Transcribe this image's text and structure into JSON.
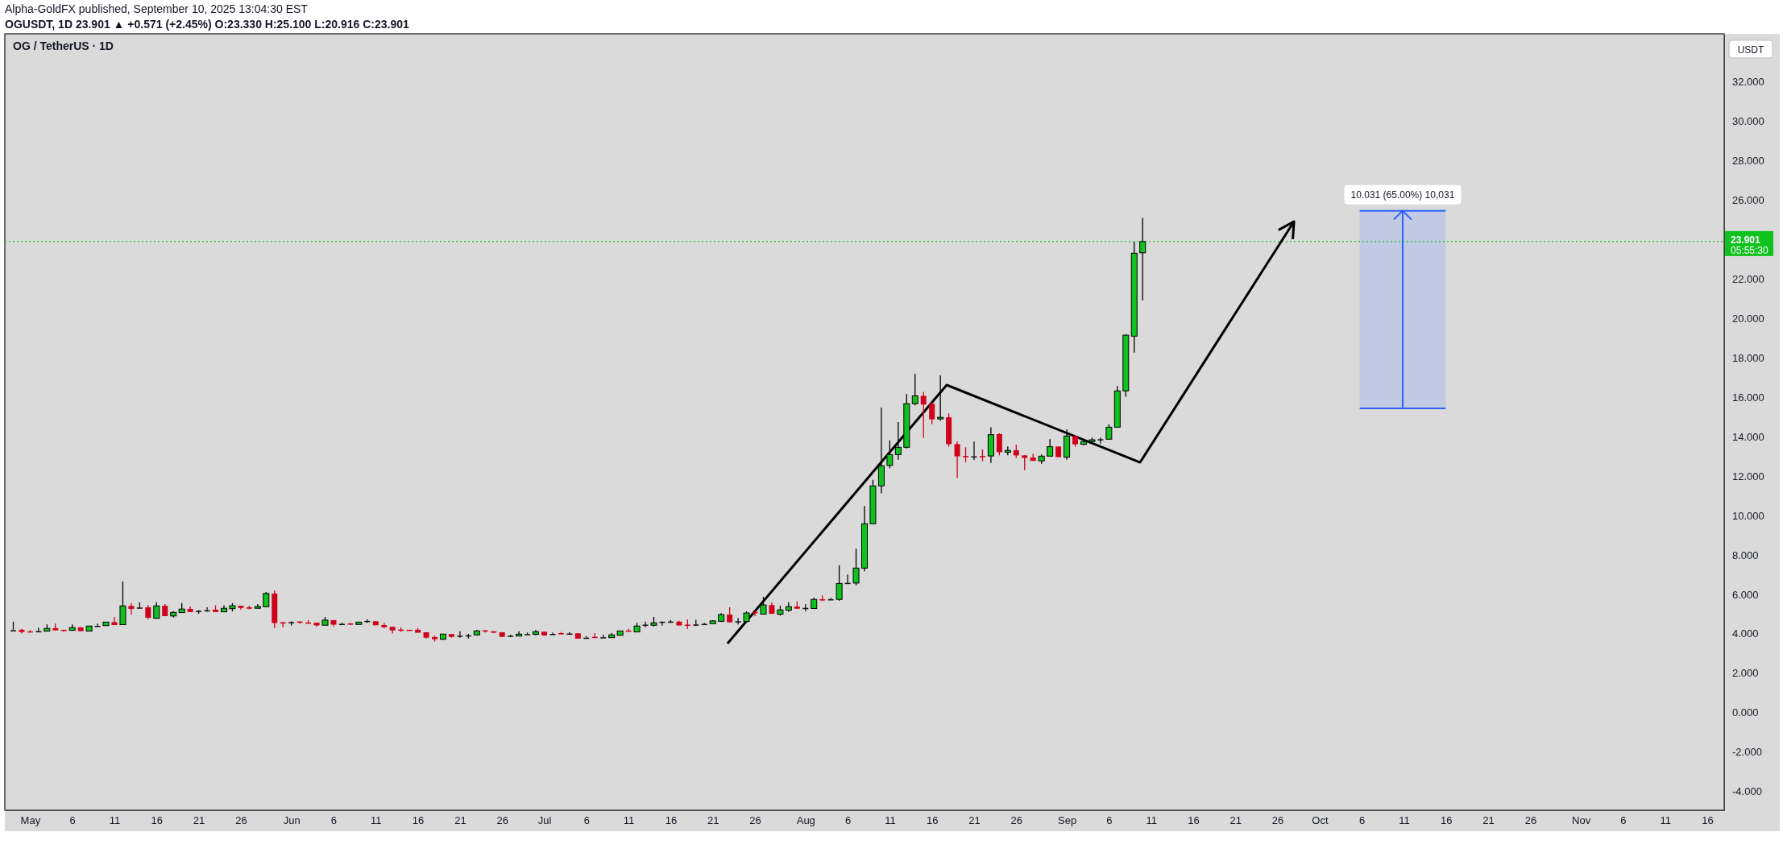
{
  "chart_data": {
    "type": "candlestick",
    "title": "OG / TetherUS · 1D",
    "annotations": [
      "Alpha-GoldFX published, September 10, 2025 13:04:30 EST",
      "OGUSDT, 1D 23.901 ▲ +0.571 (+2.45%) O:23.330 H:25.100 L:20.916 C:23.901",
      "USDT",
      "05:55:30"
    ],
    "x": [
      "2025-04-29",
      "2025-04-30",
      "2025-05-01",
      "2025-05-02",
      "2025-05-03",
      "2025-05-04",
      "2025-05-05",
      "2025-05-06",
      "2025-05-07",
      "2025-05-08",
      "2025-05-09",
      "2025-05-10",
      "2025-05-11",
      "2025-05-12",
      "2025-05-13",
      "2025-05-14",
      "2025-05-15",
      "2025-05-16",
      "2025-05-17",
      "2025-05-18",
      "2025-05-19",
      "2025-05-20",
      "2025-05-21",
      "2025-05-22",
      "2025-05-23",
      "2025-05-24",
      "2025-05-25",
      "2025-05-26",
      "2025-05-27",
      "2025-05-28",
      "2025-05-29",
      "2025-05-30",
      "2025-05-31",
      "2025-06-01",
      "2025-06-02",
      "2025-06-03",
      "2025-06-04",
      "2025-06-05",
      "2025-06-06",
      "2025-06-07",
      "2025-06-08",
      "2025-06-09",
      "2025-06-10",
      "2025-06-11",
      "2025-06-12",
      "2025-06-13",
      "2025-06-14",
      "2025-06-15",
      "2025-06-16",
      "2025-06-17",
      "2025-06-18",
      "2025-06-19",
      "2025-06-20",
      "2025-06-21",
      "2025-06-22",
      "2025-06-23",
      "2025-06-24",
      "2025-06-25",
      "2025-06-26",
      "2025-06-27",
      "2025-06-28",
      "2025-06-29",
      "2025-06-30",
      "2025-07-01",
      "2025-07-02",
      "2025-07-03",
      "2025-07-04",
      "2025-07-05",
      "2025-07-06",
      "2025-07-07",
      "2025-07-08",
      "2025-07-09",
      "2025-07-10",
      "2025-07-11",
      "2025-07-12",
      "2025-07-13",
      "2025-07-14",
      "2025-07-15",
      "2025-07-16",
      "2025-07-17",
      "2025-07-18",
      "2025-07-19",
      "2025-07-20",
      "2025-07-21",
      "2025-07-22",
      "2025-07-23",
      "2025-07-24",
      "2025-07-25",
      "2025-07-26",
      "2025-07-27",
      "2025-07-28",
      "2025-07-29",
      "2025-07-30",
      "2025-07-31",
      "2025-08-01",
      "2025-08-02",
      "2025-08-03",
      "2025-08-04",
      "2025-08-05",
      "2025-08-06",
      "2025-08-07",
      "2025-08-08",
      "2025-08-09",
      "2025-08-10",
      "2025-08-11",
      "2025-08-12",
      "2025-08-13",
      "2025-08-14",
      "2025-08-15",
      "2025-08-16",
      "2025-08-17",
      "2025-08-18",
      "2025-08-19",
      "2025-08-20",
      "2025-08-21",
      "2025-08-22",
      "2025-08-23",
      "2025-08-24",
      "2025-08-25",
      "2025-08-26",
      "2025-08-27",
      "2025-08-28",
      "2025-08-29",
      "2025-08-30",
      "2025-08-31",
      "2025-09-01",
      "2025-09-02",
      "2025-09-03",
      "2025-09-04",
      "2025-09-05",
      "2025-09-06",
      "2025-09-07",
      "2025-09-08",
      "2025-09-09",
      "2025-09-10"
    ],
    "ohlc": [
      [
        4.18,
        4.61,
        4.18,
        4.18
      ],
      [
        4.2,
        4.25,
        4.01,
        4.09
      ],
      [
        4.12,
        4.18,
        4.09,
        4.09
      ],
      [
        4.13,
        4.31,
        4.09,
        4.13
      ],
      [
        4.13,
        4.47,
        4.13,
        4.27
      ],
      [
        4.28,
        4.52,
        4.17,
        4.17
      ],
      [
        4.2,
        4.2,
        4.09,
        4.17
      ],
      [
        4.17,
        4.47,
        4.17,
        4.31
      ],
      [
        4.32,
        4.35,
        4.13,
        4.13
      ],
      [
        4.13,
        4.39,
        4.13,
        4.39
      ],
      [
        4.4,
        4.51,
        4.37,
        4.4
      ],
      [
        4.41,
        4.59,
        4.41,
        4.59
      ],
      [
        4.59,
        4.85,
        4.44,
        4.44
      ],
      [
        4.46,
        6.65,
        4.46,
        5.41
      ],
      [
        5.41,
        5.55,
        4.97,
        5.26
      ],
      [
        5.33,
        5.59,
        5.29,
        5.33
      ],
      [
        5.34,
        5.46,
        4.73,
        4.81
      ],
      [
        4.78,
        5.59,
        4.78,
        5.41
      ],
      [
        5.42,
        5.5,
        4.89,
        4.89
      ],
      [
        4.9,
        5.15,
        4.82,
        5.08
      ],
      [
        5.07,
        5.55,
        5.07,
        5.25
      ],
      [
        5.26,
        5.38,
        5.1,
        5.1
      ],
      [
        5.16,
        5.2,
        5.01,
        5.16
      ],
      [
        5.19,
        5.34,
        5.12,
        5.19
      ],
      [
        5.22,
        5.44,
        5.1,
        5.1
      ],
      [
        5.11,
        5.44,
        5.11,
        5.29
      ],
      [
        5.27,
        5.55,
        5.14,
        5.42
      ],
      [
        5.42,
        5.42,
        5.23,
        5.31
      ],
      [
        5.34,
        5.42,
        5.23,
        5.27
      ],
      [
        5.29,
        5.5,
        5.29,
        5.38
      ],
      [
        5.37,
        6.12,
        5.37,
        6.04
      ],
      [
        6.04,
        6.2,
        4.29,
        4.54
      ],
      [
        4.58,
        4.58,
        4.33,
        4.55
      ],
      [
        4.59,
        4.63,
        4.41,
        4.59
      ],
      [
        4.62,
        4.62,
        4.5,
        4.58
      ],
      [
        4.57,
        4.69,
        4.54,
        4.54
      ],
      [
        4.56,
        4.56,
        4.36,
        4.42
      ],
      [
        4.43,
        4.85,
        4.43,
        4.69
      ],
      [
        4.69,
        4.69,
        4.37,
        4.46
      ],
      [
        4.5,
        4.56,
        4.45,
        4.5
      ],
      [
        4.52,
        4.55,
        4.44,
        4.48
      ],
      [
        4.47,
        4.59,
        4.47,
        4.59
      ],
      [
        4.65,
        4.73,
        4.55,
        4.65
      ],
      [
        4.63,
        4.63,
        4.43,
        4.43
      ],
      [
        4.44,
        4.55,
        4.28,
        4.33
      ],
      [
        4.35,
        4.35,
        4.01,
        4.17
      ],
      [
        4.21,
        4.32,
        4.09,
        4.18
      ],
      [
        4.2,
        4.2,
        4.16,
        4.17
      ],
      [
        4.2,
        4.28,
        4.05,
        4.05
      ],
      [
        4.07,
        4.07,
        3.76,
        3.8
      ],
      [
        3.83,
        3.91,
        3.6,
        3.72
      ],
      [
        3.72,
        3.98,
        3.68,
        3.98
      ],
      [
        3.98,
        3.98,
        3.8,
        3.84
      ],
      [
        3.9,
        4.12,
        3.8,
        3.9
      ],
      [
        3.92,
        3.99,
        3.76,
        3.92
      ],
      [
        3.94,
        4.2,
        3.94,
        4.14
      ],
      [
        4.17,
        4.17,
        4.06,
        4.14
      ],
      [
        4.12,
        4.12,
        4.05,
        4.05
      ],
      [
        4.07,
        4.08,
        3.84,
        3.84
      ],
      [
        3.9,
        3.95,
        3.84,
        3.9
      ],
      [
        3.88,
        4.12,
        3.88,
        3.98
      ],
      [
        3.98,
        4.06,
        3.96,
        3.98
      ],
      [
        3.97,
        4.2,
        3.92,
        4.1
      ],
      [
        4.1,
        4.1,
        3.91,
        3.91
      ],
      [
        3.99,
        4.05,
        3.95,
        3.99
      ],
      [
        4.03,
        4.09,
        3.95,
        3.99
      ],
      [
        4.01,
        4.07,
        3.99,
        4.01
      ],
      [
        4.02,
        4.02,
        3.75,
        3.75
      ],
      [
        3.8,
        3.88,
        3.8,
        3.8
      ],
      [
        3.84,
        4.03,
        3.82,
        3.82
      ],
      [
        3.82,
        3.95,
        3.82,
        3.82
      ],
      [
        3.8,
        4.03,
        3.8,
        3.94
      ],
      [
        3.92,
        4.14,
        3.92,
        4.14
      ],
      [
        4.16,
        4.25,
        4.13,
        4.13
      ],
      [
        4.09,
        4.55,
        4.09,
        4.39
      ],
      [
        4.46,
        4.61,
        4.33,
        4.46
      ],
      [
        4.43,
        4.85,
        4.37,
        4.55
      ],
      [
        4.61,
        4.61,
        4.41,
        4.61
      ],
      [
        4.62,
        4.69,
        4.55,
        4.62
      ],
      [
        4.61,
        4.66,
        4.42,
        4.42
      ],
      [
        4.46,
        4.73,
        4.25,
        4.42
      ],
      [
        4.47,
        4.71,
        4.39,
        4.47
      ],
      [
        4.5,
        4.55,
        4.46,
        4.5
      ],
      [
        4.51,
        4.69,
        4.51,
        4.65
      ],
      [
        4.63,
        5.04,
        4.59,
        4.97
      ],
      [
        4.97,
        5.34,
        4.58,
        4.58
      ],
      [
        4.63,
        4.8,
        4.46,
        4.63
      ],
      [
        4.62,
        5.14,
        4.62,
        5.05
      ],
      [
        5.1,
        5.16,
        4.89,
        5.06
      ],
      [
        4.99,
        5.87,
        4.99,
        5.46
      ],
      [
        5.45,
        5.59,
        5.01,
        5.01
      ],
      [
        4.99,
        5.42,
        4.91,
        5.21
      ],
      [
        5.19,
        5.59,
        5.1,
        5.37
      ],
      [
        5.38,
        5.64,
        5.27,
        5.27
      ],
      [
        5.31,
        5.5,
        5.15,
        5.31
      ],
      [
        5.28,
        5.83,
        5.28,
        5.74
      ],
      [
        5.75,
        5.94,
        5.66,
        5.72
      ],
      [
        5.75,
        5.82,
        5.73,
        5.75
      ],
      [
        5.74,
        7.47,
        5.67,
        6.55
      ],
      [
        6.58,
        7.0,
        6.54,
        6.58
      ],
      [
        6.57,
        8.32,
        6.46,
        7.33
      ],
      [
        7.33,
        10.48,
        7.17,
        9.58
      ],
      [
        9.58,
        11.81,
        9.58,
        11.5
      ],
      [
        11.5,
        15.48,
        11.12,
        12.52
      ],
      [
        12.54,
        13.81,
        12.4,
        13.09
      ],
      [
        13.09,
        14.74,
        12.83,
        13.46
      ],
      [
        13.46,
        16.16,
        13.4,
        15.67
      ],
      [
        15.67,
        17.19,
        15.59,
        16.07
      ],
      [
        16.07,
        16.27,
        13.94,
        15.63
      ],
      [
        15.67,
        15.75,
        14.63,
        14.88
      ],
      [
        14.9,
        17.11,
        14.81,
        14.98
      ],
      [
        14.98,
        15.18,
        13.49,
        13.62
      ],
      [
        13.62,
        13.75,
        11.91,
        13.0
      ],
      [
        13.02,
        13.46,
        12.7,
        12.97
      ],
      [
        13.0,
        13.75,
        12.81,
        13.0
      ],
      [
        13.02,
        13.35,
        12.75,
        12.98
      ],
      [
        13.02,
        14.47,
        12.67,
        14.1
      ],
      [
        14.13,
        14.17,
        13.05,
        13.21
      ],
      [
        13.21,
        13.5,
        13.05,
        13.3
      ],
      [
        13.31,
        13.6,
        12.92,
        13.05
      ],
      [
        13.05,
        13.05,
        12.3,
        12.92
      ],
      [
        12.94,
        13.13,
        12.77,
        12.77
      ],
      [
        12.77,
        13.09,
        12.63,
        13.01
      ],
      [
        13.01,
        13.87,
        13.01,
        13.49
      ],
      [
        13.5,
        13.5,
        12.96,
        12.96
      ],
      [
        12.96,
        14.36,
        12.83,
        14.03
      ],
      [
        14.03,
        14.03,
        13.49,
        13.61
      ],
      [
        13.61,
        13.75,
        13.57,
        13.75
      ],
      [
        13.75,
        13.95,
        13.68,
        13.84
      ],
      [
        13.87,
        13.95,
        13.65,
        13.87
      ],
      [
        13.87,
        14.62,
        13.87,
        14.48
      ],
      [
        14.48,
        16.57,
        14.48,
        16.32
      ],
      [
        16.32,
        19.18,
        16.03,
        19.15
      ],
      [
        19.1,
        23.89,
        18.27,
        23.31
      ],
      [
        23.33,
        25.1,
        20.916,
        23.901
      ]
    ],
    "xlim": [
      "2025-04-28",
      "2025-11-18"
    ],
    "xticks": [
      {
        "value": "2025-05-01",
        "label": "May"
      },
      {
        "value": "2025-05-06",
        "label": "6"
      },
      {
        "value": "2025-05-11",
        "label": "11"
      },
      {
        "value": "2025-05-16",
        "label": "16"
      },
      {
        "value": "2025-05-21",
        "label": "21"
      },
      {
        "value": "2025-05-26",
        "label": "26"
      },
      {
        "value": "2025-06-01",
        "label": "Jun"
      },
      {
        "value": "2025-06-06",
        "label": "6"
      },
      {
        "value": "2025-06-11",
        "label": "11"
      },
      {
        "value": "2025-06-16",
        "label": "16"
      },
      {
        "value": "2025-06-21",
        "label": "21"
      },
      {
        "value": "2025-06-26",
        "label": "26"
      },
      {
        "value": "2025-07-01",
        "label": "Jul"
      },
      {
        "value": "2025-07-06",
        "label": "6"
      },
      {
        "value": "2025-07-11",
        "label": "11"
      },
      {
        "value": "2025-07-16",
        "label": "16"
      },
      {
        "value": "2025-07-21",
        "label": "21"
      },
      {
        "value": "2025-07-26",
        "label": "26"
      },
      {
        "value": "2025-08-01",
        "label": "Aug"
      },
      {
        "value": "2025-08-06",
        "label": "6"
      },
      {
        "value": "2025-08-11",
        "label": "11"
      },
      {
        "value": "2025-08-16",
        "label": "16"
      },
      {
        "value": "2025-08-21",
        "label": "21"
      },
      {
        "value": "2025-08-26",
        "label": "26"
      },
      {
        "value": "2025-09-01",
        "label": "Sep"
      },
      {
        "value": "2025-09-06",
        "label": "6"
      },
      {
        "value": "2025-09-11",
        "label": "11"
      },
      {
        "value": "2025-09-16",
        "label": "16"
      },
      {
        "value": "2025-09-21",
        "label": "21"
      },
      {
        "value": "2025-09-26",
        "label": "26"
      },
      {
        "value": "2025-10-01",
        "label": "Oct"
      },
      {
        "value": "2025-10-06",
        "label": "6"
      },
      {
        "value": "2025-10-11",
        "label": "11"
      },
      {
        "value": "2025-10-16",
        "label": "16"
      },
      {
        "value": "2025-10-21",
        "label": "21"
      },
      {
        "value": "2025-10-26",
        "label": "26"
      },
      {
        "value": "2025-11-01",
        "label": "Nov"
      },
      {
        "value": "2025-11-06",
        "label": "6"
      },
      {
        "value": "2025-11-11",
        "label": "11"
      },
      {
        "value": "2025-11-16",
        "label": "16"
      }
    ],
    "ylim": [
      -4.96,
      34.44
    ],
    "yticks": [
      {
        "value": -4,
        "label": "-4.000"
      },
      {
        "value": -2,
        "label": "-2.000"
      },
      {
        "value": 0,
        "label": "0.000"
      },
      {
        "value": 2,
        "label": "2.000"
      },
      {
        "value": 4,
        "label": "4.000"
      },
      {
        "value": 6,
        "label": "6.000"
      },
      {
        "value": 8,
        "label": "8.000"
      },
      {
        "value": 10,
        "label": "10.000"
      },
      {
        "value": 12,
        "label": "12.000"
      },
      {
        "value": 14,
        "label": "14.000"
      },
      {
        "value": 16,
        "label": "16.000"
      },
      {
        "value": 18,
        "label": "18.000"
      },
      {
        "value": 20,
        "label": "20.000"
      },
      {
        "value": 22,
        "label": "22.000"
      },
      {
        "value": 26,
        "label": "26.000"
      },
      {
        "value": 28,
        "label": "28.000"
      },
      {
        "value": 30,
        "label": "30.000"
      },
      {
        "value": 32,
        "label": "32.000"
      }
    ],
    "ref_lines": [
      {
        "axis": "y",
        "value": 23.901,
        "label": "23.901",
        "color": "#10c21d",
        "line_style": "dotted"
      }
    ],
    "bands": [
      {
        "axis": "y",
        "from": 15.432,
        "to": 25.463,
        "label": "10.031 (65.00%) 10,031",
        "color": "#c1c9e3"
      }
    ]
  }
}
